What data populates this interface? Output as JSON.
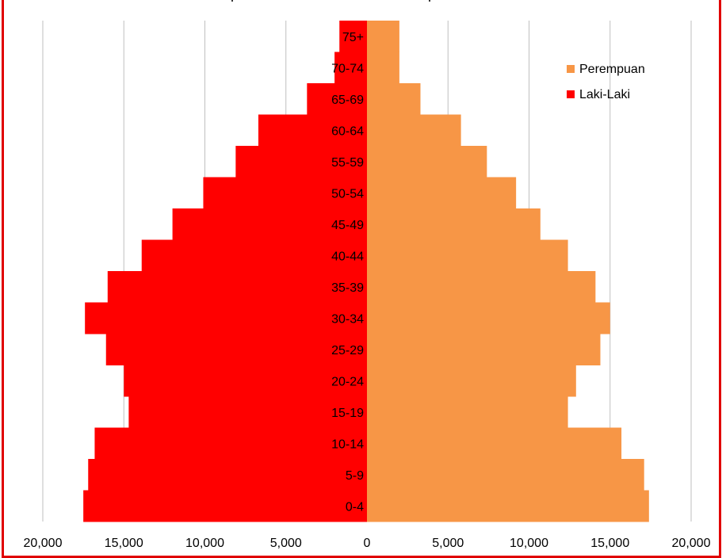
{
  "title_fragment_left": "p",
  "title_fragment_right": "p",
  "colors": {
    "female": "#F79646",
    "male": "#FF0000",
    "grid": "#BFBFBF",
    "frame": "#E00000"
  },
  "chart_data": {
    "type": "bar",
    "orientation": "horizontal",
    "layout": "population-pyramid",
    "categories": [
      "75+",
      "70-74",
      "65-69",
      "60-64",
      "55-59",
      "50-54",
      "45-49",
      "40-44",
      "35-39",
      "30-34",
      "25-29",
      "20-24",
      "15-19",
      "10-14",
      "5-9",
      "0-4"
    ],
    "series": [
      {
        "name": "Perempuan",
        "color": "#F79646",
        "side": "right",
        "values": [
          2000,
          2000,
          3300,
          5800,
          7400,
          9200,
          10700,
          12400,
          14100,
          15000,
          14400,
          12900,
          12400,
          15700,
          17100,
          17400
        ]
      },
      {
        "name": "Laki-Laki",
        "color": "#FF0000",
        "side": "left",
        "values": [
          1700,
          2000,
          3700,
          6700,
          8100,
          10100,
          12000,
          13900,
          16000,
          17400,
          16100,
          15000,
          14700,
          16800,
          17200,
          17500
        ]
      }
    ],
    "x_tick_labels": [
      "20,000",
      "15,000",
      "10,000",
      "5,000",
      "0",
      "5,000",
      "10,000",
      "15,000",
      "20,000"
    ],
    "xlim": [
      -20000,
      20000
    ],
    "grid": "vertical",
    "legend": {
      "placement": "top-right",
      "entries": [
        "Perempuan",
        "Laki-Laki"
      ]
    }
  }
}
